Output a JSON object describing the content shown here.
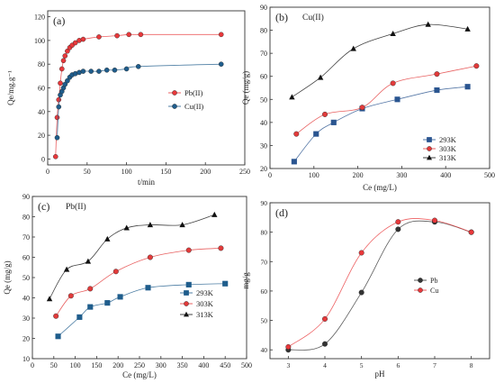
{
  "chart_data": [
    {
      "type": "scatter",
      "panel_label": "(a)",
      "xlabel": "t/min",
      "ylabel": "Qe/mg.g⁻¹",
      "xlim": [
        0,
        250
      ],
      "ylim": [
        -5,
        125
      ],
      "xticks": [
        0,
        50,
        100,
        150,
        200,
        250
      ],
      "yticks": [
        0,
        20,
        40,
        60,
        80,
        100,
        120
      ],
      "legend_position": "right",
      "series": [
        {
          "name": "Pb(II)",
          "color": "#e8383b",
          "marker": "circle",
          "x": [
            10,
            12,
            14,
            16,
            18,
            20,
            22,
            25,
            28,
            31,
            35,
            40,
            45,
            65,
            88,
            103,
            118,
            220
          ],
          "y": [
            2,
            35,
            50,
            64,
            76,
            83,
            87,
            91,
            94,
            96,
            98,
            100,
            101,
            103,
            104,
            105,
            105,
            105
          ]
        },
        {
          "name": "Cu(II)",
          "color": "#1f5d8c",
          "marker": "circle",
          "x": [
            12,
            14,
            16,
            18,
            20,
            22,
            25,
            28,
            31,
            35,
            40,
            45,
            55,
            65,
            75,
            85,
            100,
            115,
            220
          ],
          "y": [
            18,
            44,
            54,
            57,
            60,
            63,
            66,
            69,
            71,
            72,
            73,
            74,
            74,
            74,
            75,
            75,
            76,
            78,
            80
          ]
        }
      ]
    },
    {
      "type": "scatter",
      "panel_label": "(b)",
      "title": "Cu(II)",
      "xlabel": "Ce (mg/L)",
      "ylabel": "Qe (mg/g)",
      "xlim": [
        0,
        500
      ],
      "ylim": [
        20,
        90
      ],
      "xticks": [
        0,
        100,
        200,
        300,
        400,
        500
      ],
      "yticks": [
        20,
        30,
        40,
        50,
        60,
        70,
        80,
        90
      ],
      "legend_position": "bottom-right",
      "series": [
        {
          "name": "293K",
          "color": "#2a5590",
          "marker": "square",
          "x": [
            55,
            105,
            145,
            210,
            290,
            380,
            450
          ],
          "y": [
            23,
            35,
            40,
            46,
            50,
            54,
            55.5
          ]
        },
        {
          "name": "303K",
          "color": "#e23a3a",
          "marker": "circle",
          "x": [
            60,
            125,
            210,
            280,
            380,
            470
          ],
          "y": [
            35,
            43.5,
            46.5,
            57,
            61,
            64.5
          ]
        },
        {
          "name": "313K",
          "color": "#111111",
          "marker": "triangle",
          "x": [
            50,
            115,
            190,
            280,
            360,
            450
          ],
          "y": [
            51,
            59.5,
            72,
            78.5,
            82.5,
            80.5
          ]
        }
      ]
    },
    {
      "type": "scatter",
      "panel_label": "(c)",
      "title": "Pb(II)",
      "xlabel": "Ce (mg/L)",
      "ylabel": "Qe (mg/g)",
      "xlim": [
        0,
        500
      ],
      "ylim": [
        10,
        90
      ],
      "xticks": [
        0,
        50,
        100,
        150,
        200,
        250,
        300,
        350,
        400,
        450,
        500
      ],
      "yticks": [
        10,
        20,
        30,
        40,
        50,
        60,
        70,
        80,
        90
      ],
      "legend_position": "bottom-right",
      "series": [
        {
          "name": "293K",
          "color": "#1f5d8c",
          "marker": "square",
          "x": [
            60,
            110,
            135,
            175,
            205,
            270,
            365,
            450
          ],
          "y": [
            21,
            30.5,
            35.5,
            37.5,
            40.5,
            45,
            46.5,
            47
          ]
        },
        {
          "name": "303K",
          "color": "#e23a3a",
          "marker": "circle",
          "x": [
            55,
            90,
            135,
            195,
            275,
            365,
            440
          ],
          "y": [
            31,
            41,
            44.5,
            53,
            60,
            63.5,
            64.5
          ]
        },
        {
          "name": "313K",
          "color": "#111111",
          "marker": "triangle",
          "x": [
            40,
            80,
            130,
            175,
            220,
            275,
            350,
            425
          ],
          "y": [
            39.5,
            54,
            58,
            69,
            74.5,
            76,
            76,
            81
          ]
        }
      ]
    },
    {
      "type": "line",
      "panel_label": "(d)",
      "xlabel": "pH",
      "ylabel": "mg/g",
      "xlim": [
        2.5,
        8.5
      ],
      "ylim": [
        37,
        90
      ],
      "xticks": [
        3,
        4,
        5,
        6,
        7,
        8
      ],
      "yticks": [
        40,
        50,
        60,
        70,
        80,
        90
      ],
      "legend_position": "right",
      "series": [
        {
          "name": "Pb",
          "color": "#333333",
          "marker": "circle",
          "x": [
            3,
            4,
            5,
            6,
            7,
            8
          ],
          "y": [
            40,
            42,
            59.5,
            81,
            83.5,
            80
          ]
        },
        {
          "name": "Cu",
          "color": "#e8383b",
          "marker": "circle",
          "x": [
            3,
            4,
            5,
            6,
            7,
            8
          ],
          "y": [
            41,
            50.5,
            73,
            83.5,
            84,
            80
          ]
        }
      ]
    }
  ]
}
